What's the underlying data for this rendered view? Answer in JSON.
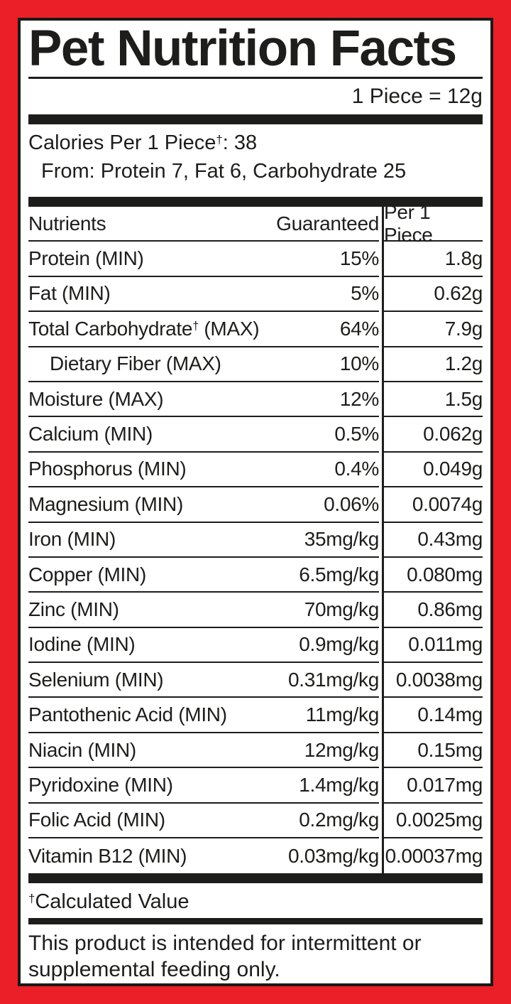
{
  "label": {
    "title": "Pet Nutrition Facts",
    "serving_size": "1 Piece = 12g",
    "calories": {
      "line": "Calories Per 1 Piece†: 38",
      "from": "From: Protein 7, Fat 6, Carbohydrate 25"
    },
    "table": {
      "col_nutrients": "Nutrients",
      "col_guaranteed": "Guaranteed",
      "col_per_piece": "Per 1 Piece",
      "rows": [
        {
          "name": "Protein (MIN)",
          "guaranteed": "15%",
          "per_piece": "1.8g",
          "indent": false
        },
        {
          "name": "Fat (MIN)",
          "guaranteed": "5%",
          "per_piece": "0.62g",
          "indent": false
        },
        {
          "name": "Total Carbohydrate† (MAX)",
          "guaranteed": "64%",
          "per_piece": "7.9g",
          "indent": false
        },
        {
          "name": "Dietary Fiber (MAX)",
          "guaranteed": "10%",
          "per_piece": "1.2g",
          "indent": true
        },
        {
          "name": "Moisture (MAX)",
          "guaranteed": "12%",
          "per_piece": "1.5g",
          "indent": false
        },
        {
          "name": "Calcium (MIN)",
          "guaranteed": "0.5%",
          "per_piece": "0.062g",
          "indent": false
        },
        {
          "name": "Phosphorus (MIN)",
          "guaranteed": "0.4%",
          "per_piece": "0.049g",
          "indent": false
        },
        {
          "name": "Magnesium (MIN)",
          "guaranteed": "0.06%",
          "per_piece": "0.0074g",
          "indent": false
        },
        {
          "name": "Iron (MIN)",
          "guaranteed": "35mg/kg",
          "per_piece": "0.43mg",
          "indent": false
        },
        {
          "name": "Copper (MIN)",
          "guaranteed": "6.5mg/kg",
          "per_piece": "0.080mg",
          "indent": false
        },
        {
          "name": "Zinc (MIN)",
          "guaranteed": "70mg/kg",
          "per_piece": "0.86mg",
          "indent": false
        },
        {
          "name": "Iodine (MIN)",
          "guaranteed": "0.9mg/kg",
          "per_piece": "0.011mg",
          "indent": false
        },
        {
          "name": "Selenium (MIN)",
          "guaranteed": "0.31mg/kg",
          "per_piece": "0.0038mg",
          "indent": false
        },
        {
          "name": "Pantothenic Acid (MIN)",
          "guaranteed": "11mg/kg",
          "per_piece": "0.14mg",
          "indent": false
        },
        {
          "name": "Niacin (MIN)",
          "guaranteed": "12mg/kg",
          "per_piece": "0.15mg",
          "indent": false
        },
        {
          "name": "Pyridoxine (MIN)",
          "guaranteed": "1.4mg/kg",
          "per_piece": "0.017mg",
          "indent": false
        },
        {
          "name": "Folic Acid (MIN)",
          "guaranteed": "0.2mg/kg",
          "per_piece": "0.0025mg",
          "indent": false
        },
        {
          "name": "Vitamin B12 (MIN)",
          "guaranteed": "0.03mg/kg",
          "per_piece": "0.00037mg",
          "indent": false
        }
      ]
    },
    "footnote": "†Calculated Value",
    "disclaimer": "This product is intended for intermittent or supplemental feeding only.",
    "colors": {
      "frame": "#EA1F27",
      "ink": "#1D1D1B"
    }
  }
}
